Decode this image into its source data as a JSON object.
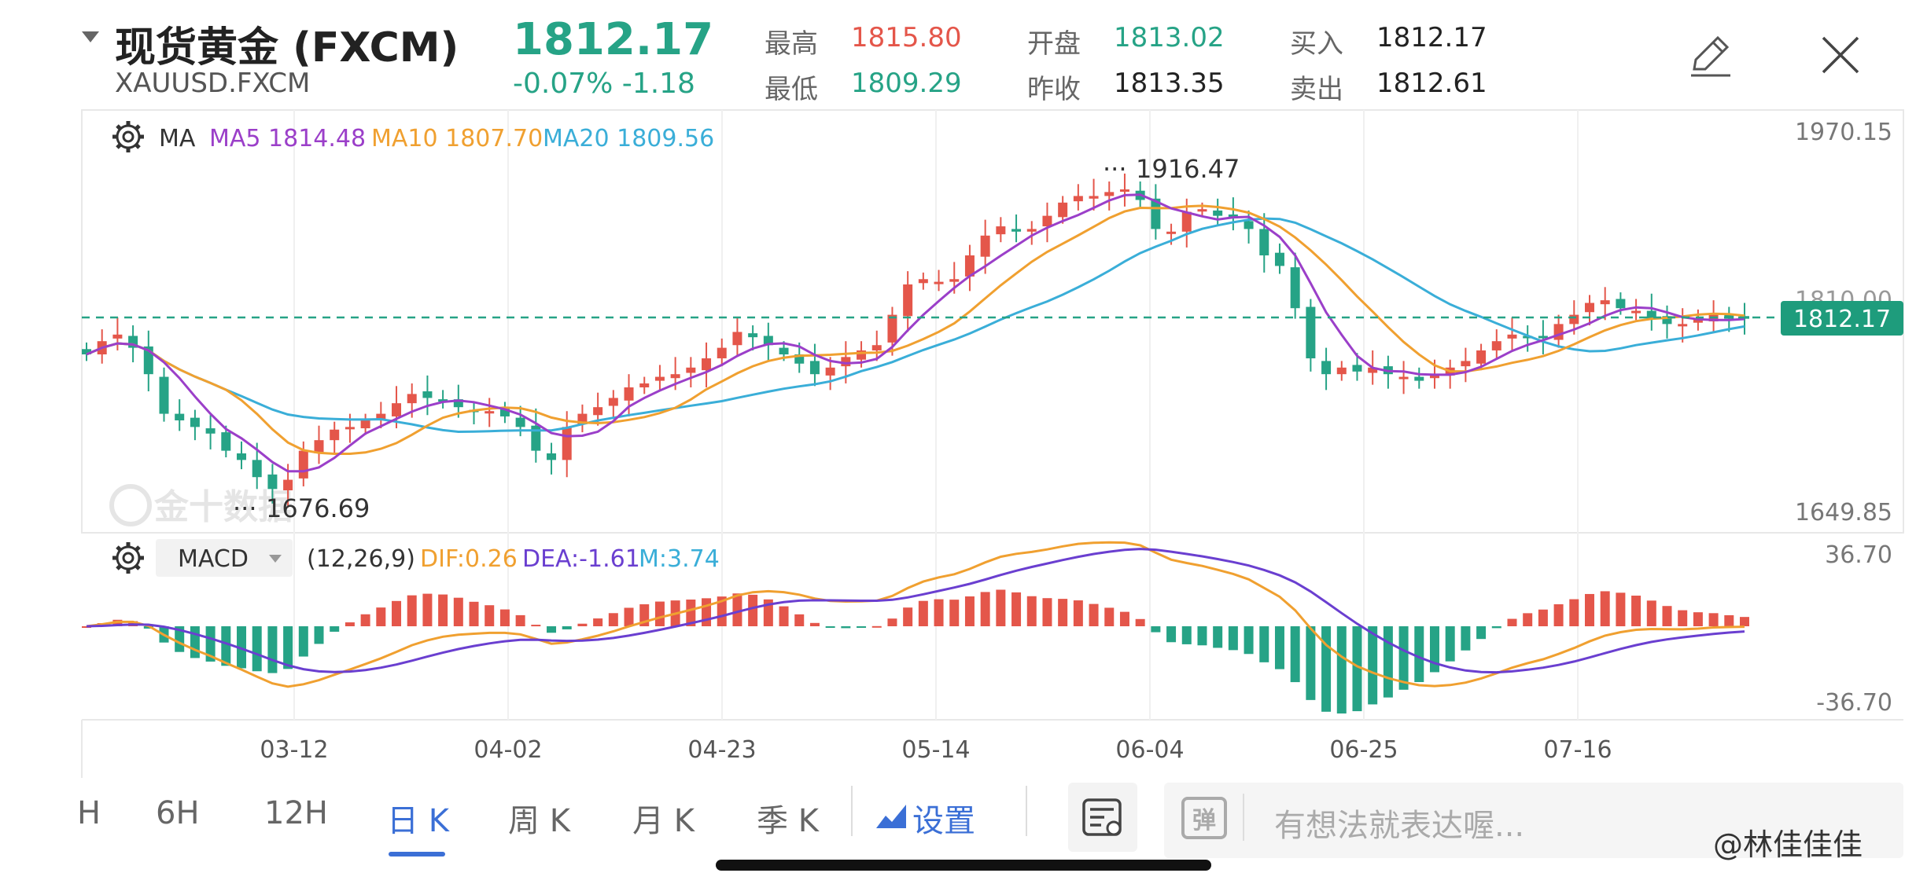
{
  "header": {
    "title": "现货黄金 (FXCM)",
    "code": "XAUUSD.FXCM",
    "price": "1812.17",
    "change": "-0.07% -1.18",
    "quotes": [
      {
        "label": "最高",
        "value": "1815.80",
        "color": "#e4564a"
      },
      {
        "label": "最低",
        "value": "1809.29",
        "color": "#26a386"
      },
      {
        "label": "开盘",
        "value": "1813.02",
        "color": "#26a386"
      },
      {
        "label": "昨收",
        "value": "1813.35",
        "color": "#222222"
      },
      {
        "label": "买入",
        "value": "1812.17",
        "color": "#222222"
      },
      {
        "label": "卖出",
        "value": "1812.61",
        "color": "#222222"
      }
    ],
    "icons": [
      "edit-icon",
      "close-icon"
    ]
  },
  "main_chart": {
    "indicator": "MA",
    "ma5": "MA5 1814.48",
    "ma10": "MA10 1807.70",
    "ma20": "MA20 1809.56",
    "y_top": "1970.15",
    "y_bottom": "1649.85",
    "y_mid_partial": "1810.00",
    "current_price_tag": "1812.17",
    "high_marker": "1916.47",
    "low_marker": "1676.69",
    "watermark": "金十数据",
    "colors": {
      "up": "#e4564a",
      "down": "#26a386",
      "ma5": "#9b3fc9",
      "ma10": "#f0a030",
      "ma20": "#3aaed8"
    }
  },
  "macd_panel": {
    "indicator": "MACD",
    "params": "(12,26,9)",
    "dif": "DIF:0.26",
    "dea": "DEA:-1.61",
    "m": "M:3.74",
    "y_top": "36.70",
    "y_bottom": "-36.70",
    "colors": {
      "dif": "#f0a030",
      "dea": "#6a3fd0"
    }
  },
  "x_axis": [
    "03-12",
    "04-02",
    "04-23",
    "05-14",
    "06-04",
    "06-25",
    "07-16"
  ],
  "chart_data": {
    "type": "candlestick",
    "ylim": [
      1649.85,
      1970.15
    ],
    "close_approx": [
      1785,
      1795,
      1800,
      1790,
      1770,
      1740,
      1735,
      1730,
      1725,
      1712,
      1705,
      1692,
      1683,
      1690,
      1712,
      1720,
      1728,
      1730,
      1735,
      1740,
      1748,
      1755,
      1752,
      1750,
      1745,
      1742,
      1742,
      1738,
      1730,
      1712,
      1705,
      1730,
      1740,
      1745,
      1752,
      1760,
      1763,
      1768,
      1770,
      1775,
      1782,
      1790,
      1802,
      1798,
      1792,
      1785,
      1778,
      1770,
      1775,
      1783,
      1788,
      1792,
      1815,
      1838,
      1842,
      1840,
      1842,
      1860,
      1875,
      1882,
      1878,
      1880,
      1890,
      1900,
      1905,
      1905,
      1908,
      1910,
      1902,
      1880,
      1878,
      1893,
      1895,
      1890,
      1888,
      1880,
      1860,
      1852,
      1820,
      1782,
      1770,
      1775,
      1772,
      1775,
      1770,
      1768,
      1765,
      1770,
      1775,
      1780,
      1788,
      1795,
      1800,
      1798,
      1798,
      1808,
      1815,
      1824,
      1826,
      1820,
      1818,
      1812,
      1808,
      1808,
      1812,
      1815,
      1812,
      1812
    ],
    "macd": {
      "dif": "0.26",
      "dea": "-1.61",
      "m": "3.74",
      "ylim": [
        -36.7,
        36.7
      ]
    },
    "x_ticks": [
      "03-12",
      "04-02",
      "04-23",
      "05-14",
      "06-04",
      "06-25",
      "07-16"
    ]
  },
  "bottom_bar": {
    "timeframes": [
      "H",
      "6H",
      "12H",
      "日 K",
      "周 K",
      "月 K",
      "季 K"
    ],
    "active": "日 K",
    "settings": "设置",
    "comment_placeholder": "有想法就表达喔...",
    "watermark": "@林佳佳佳"
  }
}
